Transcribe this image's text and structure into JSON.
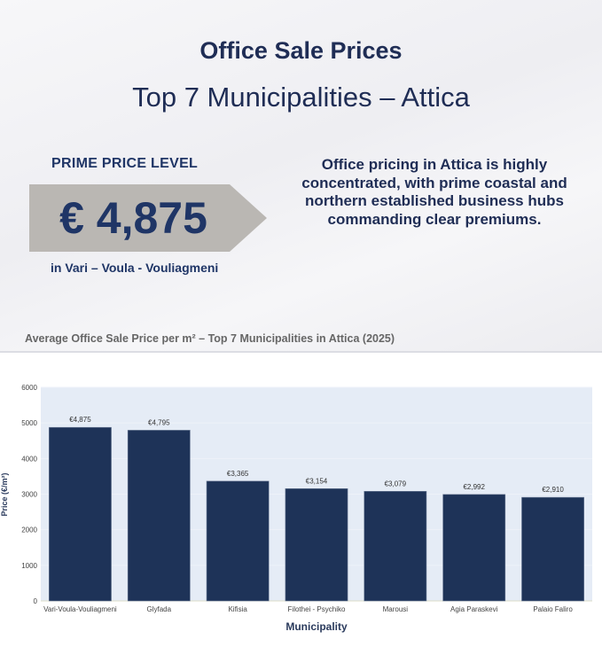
{
  "header": {
    "title": "Office Sale Prices",
    "subtitle": "Top 7 Municipalities – Attica"
  },
  "highlight": {
    "label": "PRIME PRICE LEVEL",
    "value": "€ 4,875",
    "location": "in Vari – Voula - Vouliagmeni"
  },
  "quote": "Office pricing in Attica is highly concentrated, with prime coastal and northern established business hubs commanding clear premiums.",
  "colors": {
    "bar": "#1e3358",
    "plot_bg": "#e5ecf6",
    "text": "#1f2d55",
    "banner": "#bab7b3"
  },
  "chart_data": {
    "type": "bar",
    "title": "Average Office Sale Price per m² – Top 7 Municipalities in Attica (2025)",
    "xlabel": "Municipality",
    "ylabel": "Price (€/m²)",
    "ylim": [
      0,
      6000
    ],
    "yticks": [
      0,
      1000,
      2000,
      3000,
      4000,
      5000,
      6000
    ],
    "grid": true,
    "categories": [
      "Vari-Voula-Vouliagmeni",
      "Glyfada",
      "Kifisia",
      "Filothei - Psychiko",
      "Marousi",
      "Agia Paraskevi",
      "Palaio Faliro"
    ],
    "values": [
      4875,
      4795,
      3365,
      3154,
      3079,
      2992,
      2910
    ],
    "data_labels": [
      "€4,875",
      "€4,795",
      "€3,365",
      "€3,154",
      "€3,079",
      "€2,992",
      "€2,910"
    ]
  }
}
